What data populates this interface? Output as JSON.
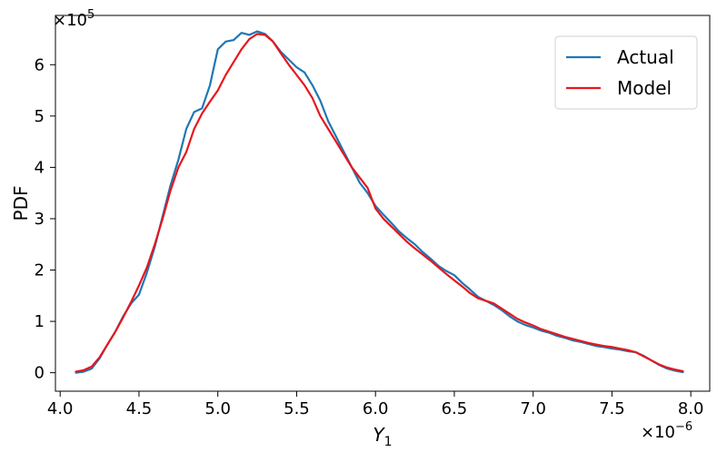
{
  "chart_data": {
    "type": "line",
    "title": "",
    "xlabel": "Y",
    "xlabel_subscript": "1",
    "ylabel": "PDF",
    "x_multiplier": "×10",
    "x_multiplier_exp": "−6",
    "y_multiplier": "×10",
    "y_multiplier_exp": "5",
    "xlim": [
      3.97,
      8.12
    ],
    "ylim": [
      -0.36,
      6.96
    ],
    "x_ticks": [
      4.0,
      4.5,
      5.0,
      5.5,
      6.0,
      6.5,
      7.0,
      7.5,
      8.0
    ],
    "x_tick_labels": [
      "4.0",
      "4.5",
      "5.0",
      "5.5",
      "6.0",
      "6.5",
      "7.0",
      "7.5",
      "8.0"
    ],
    "y_ticks": [
      0,
      1,
      2,
      3,
      4,
      5,
      6
    ],
    "y_tick_labels": [
      "0",
      "1",
      "2",
      "3",
      "4",
      "5",
      "6"
    ],
    "grid": false,
    "legend_position": "top-right",
    "series": [
      {
        "name": "Actual",
        "color": "#1f77b4",
        "points": [
          [
            4.1,
            0.0
          ],
          [
            4.15,
            0.02
          ],
          [
            4.2,
            0.08
          ],
          [
            4.25,
            0.28
          ],
          [
            4.3,
            0.55
          ],
          [
            4.35,
            0.8
          ],
          [
            4.4,
            1.1
          ],
          [
            4.45,
            1.35
          ],
          [
            4.5,
            1.52
          ],
          [
            4.55,
            1.95
          ],
          [
            4.6,
            2.45
          ],
          [
            4.65,
            3.05
          ],
          [
            4.7,
            3.65
          ],
          [
            4.75,
            4.15
          ],
          [
            4.8,
            4.75
          ],
          [
            4.85,
            5.08
          ],
          [
            4.9,
            5.15
          ],
          [
            4.95,
            5.6
          ],
          [
            5.0,
            6.3
          ],
          [
            5.05,
            6.45
          ],
          [
            5.1,
            6.48
          ],
          [
            5.15,
            6.62
          ],
          [
            5.2,
            6.58
          ],
          [
            5.25,
            6.65
          ],
          [
            5.3,
            6.6
          ],
          [
            5.35,
            6.45
          ],
          [
            5.4,
            6.25
          ],
          [
            5.45,
            6.1
          ],
          [
            5.5,
            5.95
          ],
          [
            5.55,
            5.85
          ],
          [
            5.6,
            5.6
          ],
          [
            5.65,
            5.3
          ],
          [
            5.7,
            4.9
          ],
          [
            5.75,
            4.6
          ],
          [
            5.8,
            4.3
          ],
          [
            5.85,
            4.0
          ],
          [
            5.9,
            3.7
          ],
          [
            5.95,
            3.5
          ],
          [
            6.0,
            3.25
          ],
          [
            6.05,
            3.08
          ],
          [
            6.1,
            2.92
          ],
          [
            6.15,
            2.75
          ],
          [
            6.2,
            2.62
          ],
          [
            6.25,
            2.5
          ],
          [
            6.3,
            2.35
          ],
          [
            6.35,
            2.22
          ],
          [
            6.4,
            2.08
          ],
          [
            6.45,
            1.98
          ],
          [
            6.5,
            1.9
          ],
          [
            6.55,
            1.75
          ],
          [
            6.6,
            1.62
          ],
          [
            6.65,
            1.48
          ],
          [
            6.7,
            1.4
          ],
          [
            6.75,
            1.32
          ],
          [
            6.8,
            1.22
          ],
          [
            6.85,
            1.1
          ],
          [
            6.9,
            1.0
          ],
          [
            6.95,
            0.93
          ],
          [
            7.0,
            0.88
          ],
          [
            7.05,
            0.82
          ],
          [
            7.1,
            0.78
          ],
          [
            7.15,
            0.72
          ],
          [
            7.2,
            0.68
          ],
          [
            7.25,
            0.63
          ],
          [
            7.3,
            0.6
          ],
          [
            7.35,
            0.56
          ],
          [
            7.4,
            0.52
          ],
          [
            7.45,
            0.5
          ],
          [
            7.5,
            0.47
          ],
          [
            7.55,
            0.45
          ],
          [
            7.6,
            0.42
          ],
          [
            7.65,
            0.4
          ],
          [
            7.7,
            0.33
          ],
          [
            7.75,
            0.24
          ],
          [
            7.8,
            0.15
          ],
          [
            7.85,
            0.08
          ],
          [
            7.9,
            0.04
          ],
          [
            7.95,
            0.01
          ]
        ]
      },
      {
        "name": "Model",
        "color": "#e8161c",
        "points": [
          [
            4.1,
            0.02
          ],
          [
            4.15,
            0.05
          ],
          [
            4.2,
            0.12
          ],
          [
            4.25,
            0.3
          ],
          [
            4.3,
            0.55
          ],
          [
            4.35,
            0.8
          ],
          [
            4.4,
            1.08
          ],
          [
            4.45,
            1.38
          ],
          [
            4.5,
            1.7
          ],
          [
            4.55,
            2.05
          ],
          [
            4.6,
            2.5
          ],
          [
            4.65,
            3.0
          ],
          [
            4.7,
            3.55
          ],
          [
            4.75,
            4.0
          ],
          [
            4.8,
            4.3
          ],
          [
            4.85,
            4.75
          ],
          [
            4.9,
            5.05
          ],
          [
            4.95,
            5.28
          ],
          [
            5.0,
            5.5
          ],
          [
            5.05,
            5.8
          ],
          [
            5.1,
            6.05
          ],
          [
            5.15,
            6.3
          ],
          [
            5.2,
            6.5
          ],
          [
            5.25,
            6.6
          ],
          [
            5.3,
            6.58
          ],
          [
            5.35,
            6.45
          ],
          [
            5.4,
            6.22
          ],
          [
            5.45,
            6.0
          ],
          [
            5.5,
            5.8
          ],
          [
            5.55,
            5.6
          ],
          [
            5.6,
            5.35
          ],
          [
            5.65,
            5.0
          ],
          [
            5.7,
            4.75
          ],
          [
            5.75,
            4.5
          ],
          [
            5.8,
            4.25
          ],
          [
            5.85,
            4.0
          ],
          [
            5.9,
            3.8
          ],
          [
            5.95,
            3.6
          ],
          [
            6.0,
            3.2
          ],
          [
            6.05,
            3.0
          ],
          [
            6.1,
            2.85
          ],
          [
            6.15,
            2.7
          ],
          [
            6.2,
            2.55
          ],
          [
            6.25,
            2.42
          ],
          [
            6.3,
            2.3
          ],
          [
            6.35,
            2.18
          ],
          [
            6.4,
            2.05
          ],
          [
            6.45,
            1.92
          ],
          [
            6.5,
            1.8
          ],
          [
            6.55,
            1.68
          ],
          [
            6.6,
            1.55
          ],
          [
            6.65,
            1.45
          ],
          [
            6.7,
            1.4
          ],
          [
            6.75,
            1.35
          ],
          [
            6.8,
            1.25
          ],
          [
            6.85,
            1.15
          ],
          [
            6.9,
            1.05
          ],
          [
            6.95,
            0.98
          ],
          [
            7.0,
            0.92
          ],
          [
            7.05,
            0.85
          ],
          [
            7.1,
            0.8
          ],
          [
            7.15,
            0.75
          ],
          [
            7.2,
            0.7
          ],
          [
            7.25,
            0.66
          ],
          [
            7.3,
            0.62
          ],
          [
            7.35,
            0.58
          ],
          [
            7.4,
            0.55
          ],
          [
            7.45,
            0.52
          ],
          [
            7.5,
            0.5
          ],
          [
            7.55,
            0.47
          ],
          [
            7.6,
            0.44
          ],
          [
            7.65,
            0.4
          ],
          [
            7.7,
            0.32
          ],
          [
            7.75,
            0.24
          ],
          [
            7.8,
            0.16
          ],
          [
            7.85,
            0.1
          ],
          [
            7.9,
            0.06
          ],
          [
            7.95,
            0.03
          ]
        ]
      }
    ]
  }
}
